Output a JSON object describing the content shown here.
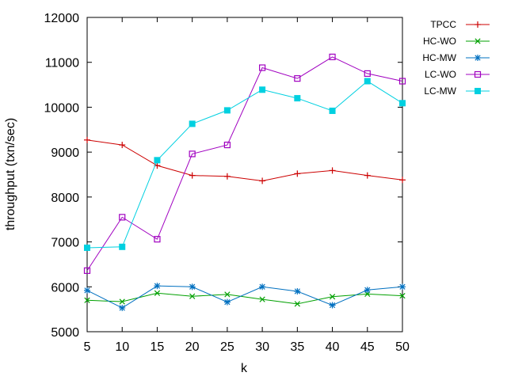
{
  "chart_data": {
    "type": "line",
    "xlabel": "k",
    "ylabel": "throughput (txn/sec)",
    "x": [
      5,
      10,
      15,
      20,
      25,
      30,
      35,
      40,
      45,
      50
    ],
    "xlim": [
      5,
      50
    ],
    "ylim": [
      5000,
      12000
    ],
    "x_ticks": [
      "5",
      "10",
      "15",
      "20",
      "25",
      "30",
      "35",
      "40",
      "45",
      "50"
    ],
    "y_ticks": [
      "5000",
      "6000",
      "7000",
      "8000",
      "9000",
      "10000",
      "11000",
      "12000"
    ],
    "legend_position": "outside-top-right",
    "grid": false,
    "series": [
      {
        "name": "TPCC",
        "color": "#cc0000",
        "marker": "plus",
        "values": [
          9270,
          9160,
          8700,
          8480,
          8460,
          8360,
          8520,
          8590,
          8480,
          8380
        ]
      },
      {
        "name": "HC-WO",
        "color": "#00a000",
        "marker": "cross",
        "values": [
          5700,
          5670,
          5860,
          5790,
          5830,
          5720,
          5620,
          5780,
          5840,
          5800
        ]
      },
      {
        "name": "HC-MW",
        "color": "#0070c0",
        "marker": "star",
        "values": [
          5920,
          5530,
          6020,
          6000,
          5660,
          6000,
          5900,
          5590,
          5930,
          6000
        ]
      },
      {
        "name": "LC-WO",
        "color": "#a000c0",
        "marker": "open-square",
        "values": [
          6360,
          7550,
          7060,
          8960,
          9160,
          10880,
          10640,
          11120,
          10750,
          10580
        ]
      },
      {
        "name": "LC-MW",
        "color": "#00d0e0",
        "marker": "filled-square",
        "values": [
          6870,
          6890,
          8820,
          9630,
          9930,
          10390,
          10200,
          9920,
          10580,
          10090
        ]
      }
    ]
  }
}
